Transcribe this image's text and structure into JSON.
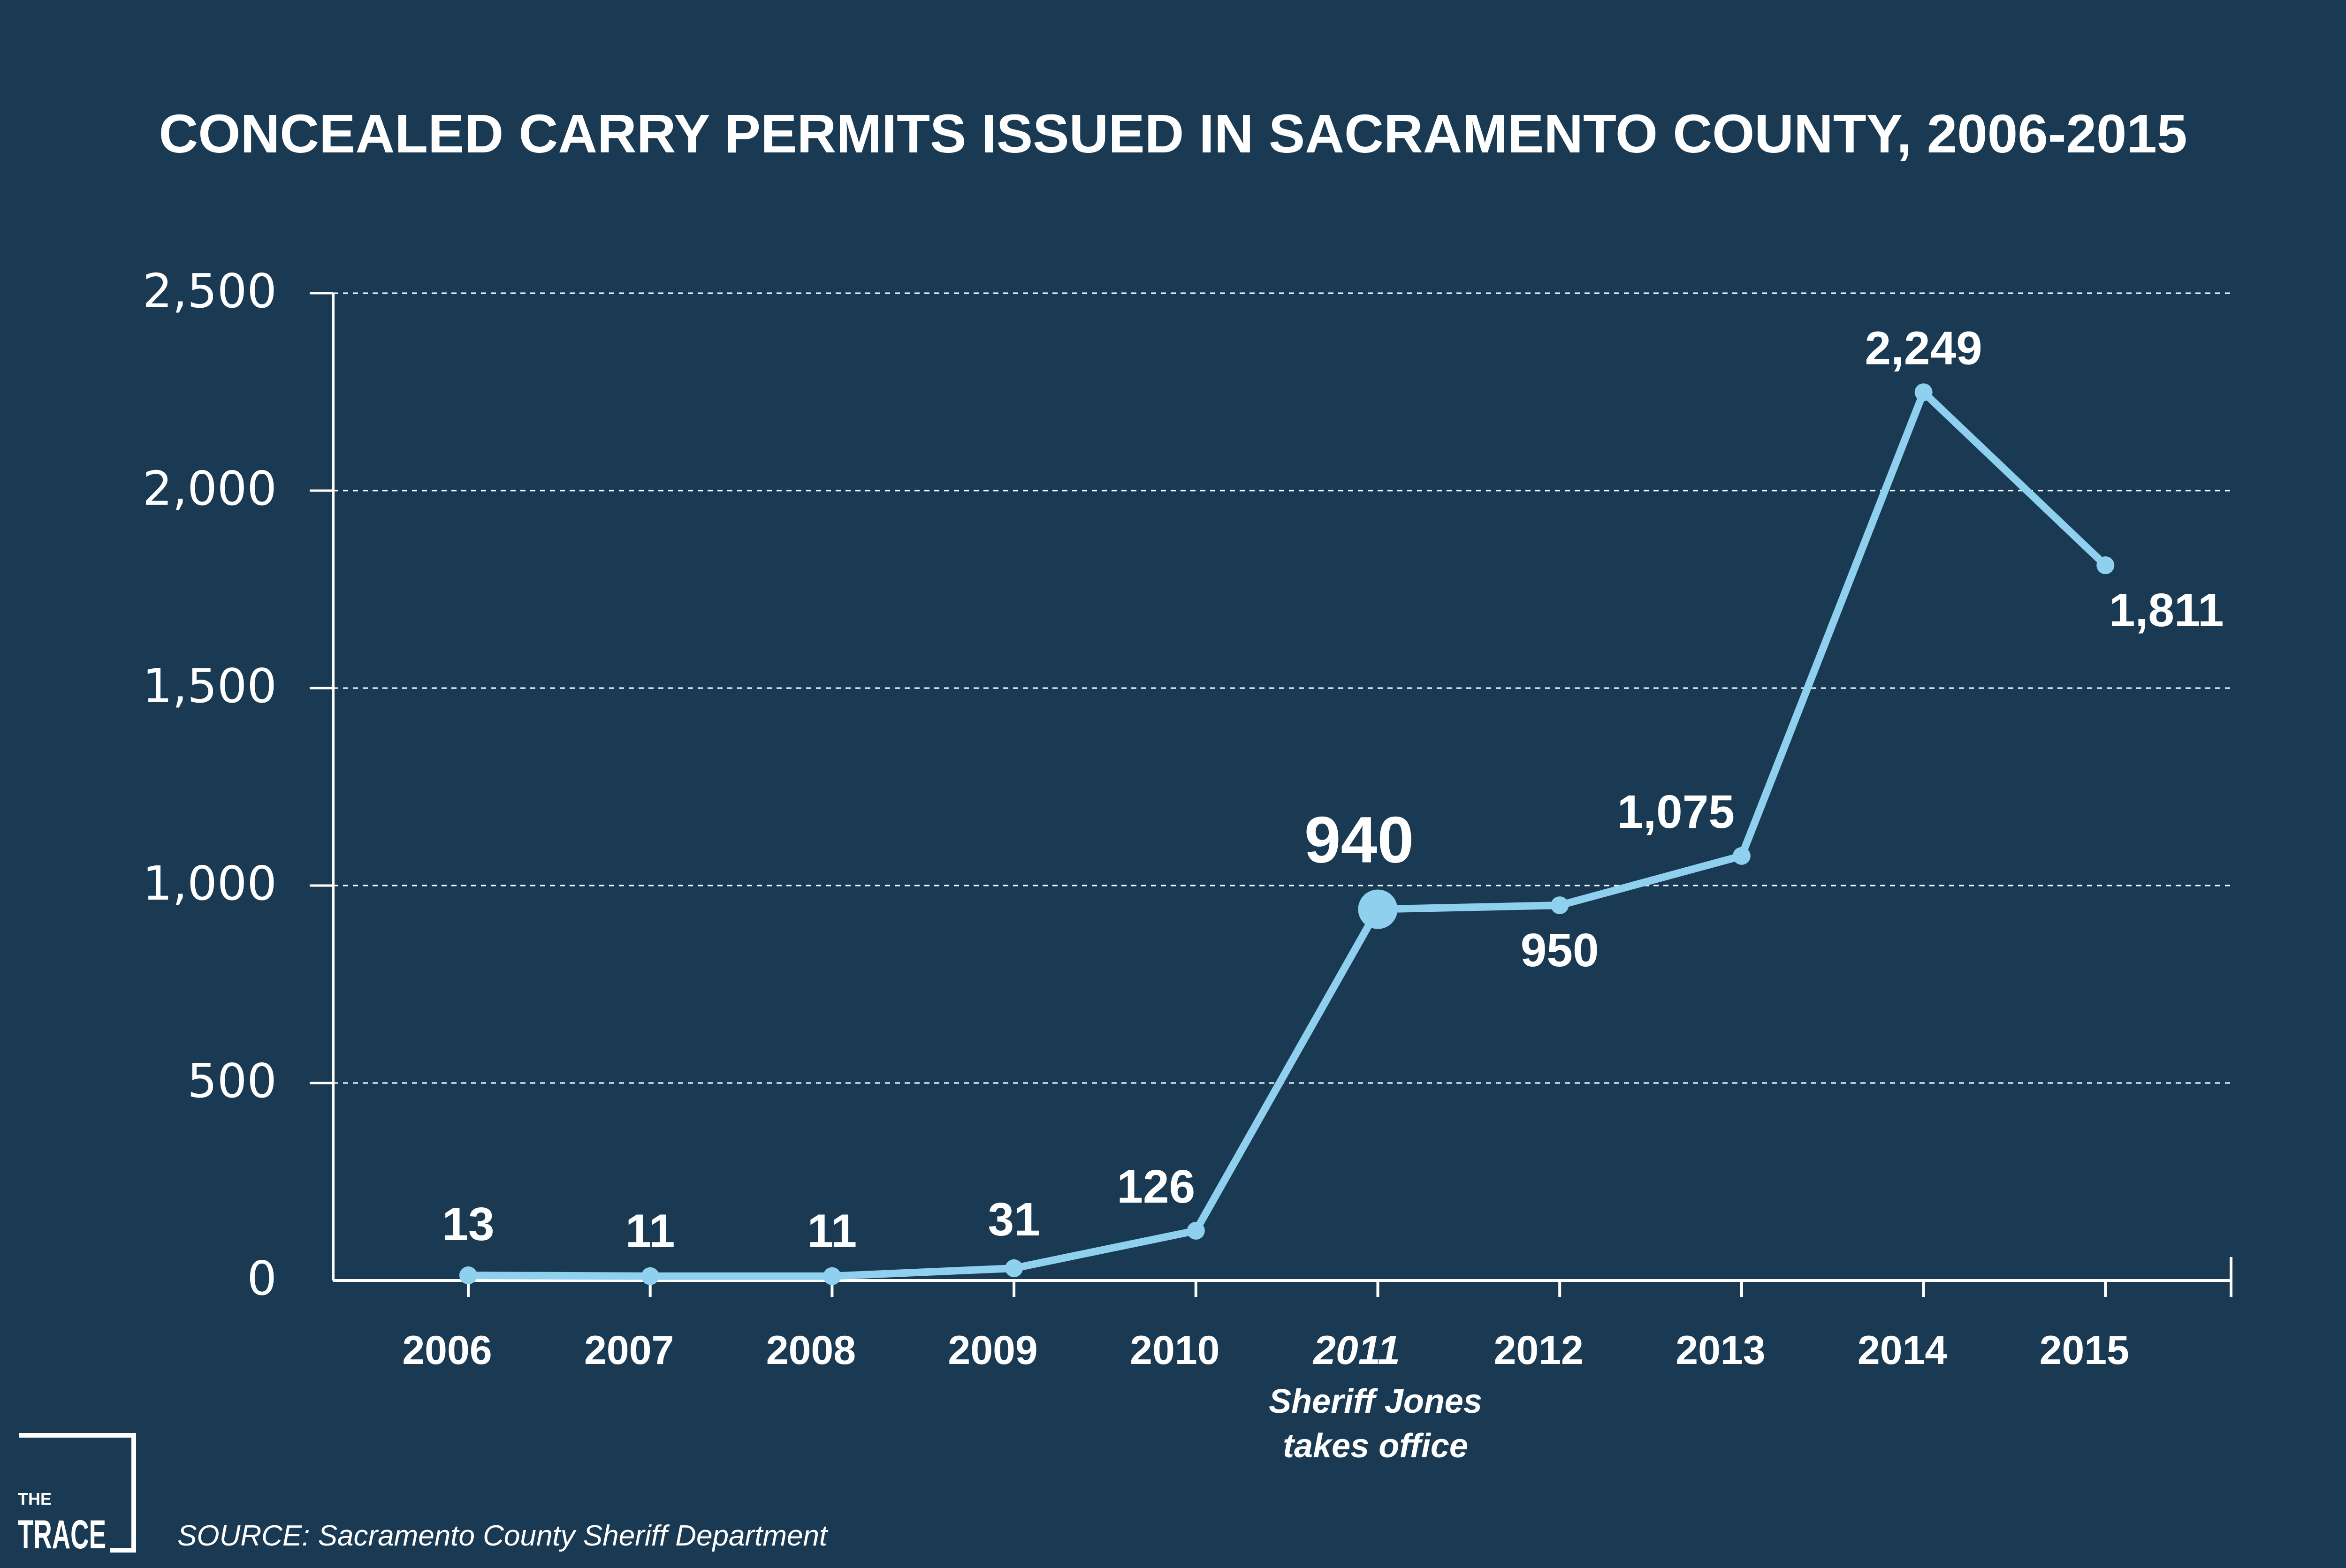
{
  "chart_data": {
    "type": "line",
    "title": "CONCEALED CARRY PERMITS ISSUED IN SACRAMENTO COUNTY, 2006-2015",
    "categories": [
      "2006",
      "2007",
      "2008",
      "2009",
      "2010",
      "2011",
      "2012",
      "2013",
      "2014",
      "2015"
    ],
    "series": [
      {
        "values": [
          13,
          11,
          11,
          31,
          126,
          940,
          950,
          1075,
          2249,
          1811
        ],
        "data_labels": [
          "13",
          "11",
          "11",
          "31",
          "126",
          "940",
          "950",
          "1,075",
          "2,249",
          "1,811"
        ],
        "color": "#8fd0ee",
        "highlight_index": 5
      }
    ],
    "y_ticks": [
      0,
      500,
      1000,
      1500,
      2000,
      2500
    ],
    "y_tick_labels": [
      "0",
      "500",
      "1,000",
      "1,500",
      "2,000",
      "2,500"
    ],
    "ylim": [
      0,
      2500
    ],
    "grid": "dashed horizontal",
    "annotation": {
      "category": "2011",
      "lines": [
        "Sheriff Jones",
        "takes office"
      ]
    }
  },
  "source": "SOURCE: Sacramento County Sheriff Department",
  "logo": {
    "line1": "THE",
    "line2": "TRACE"
  },
  "colors": {
    "background": "#193a52",
    "line": "#8fd0ee",
    "highlight_label": "#8fd0ee",
    "text": "#ffffff",
    "grid": "#ffffff"
  }
}
